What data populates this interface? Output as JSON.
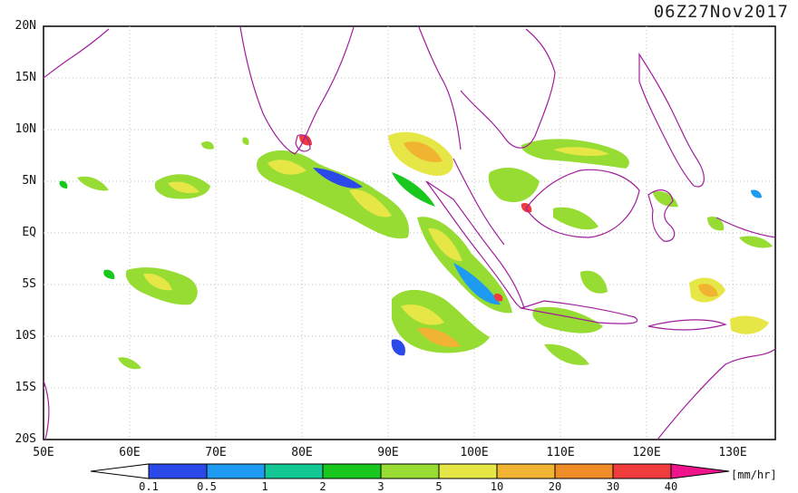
{
  "title": "06Z27Nov2017",
  "units": "[mm/hr]",
  "latitude_labels": [
    "20N",
    "15N",
    "10N",
    "5N",
    "EQ",
    "5S",
    "10S",
    "15S",
    "20S"
  ],
  "longitude_labels": [
    "50E",
    "60E",
    "70E",
    "80E",
    "90E",
    "100E",
    "110E",
    "120E",
    "130E"
  ],
  "colorbar": {
    "labels": [
      "0.1",
      "0.5",
      "1",
      "2",
      "3",
      "5",
      "10",
      "20",
      "30",
      "40"
    ],
    "colors": [
      "#ffffff",
      "#2b48e8",
      "#1e9bf0",
      "#14c896",
      "#19c81e",
      "#96dc32",
      "#e6e646",
      "#f0b432",
      "#f08c28",
      "#f03c3c",
      "#f0148c"
    ]
  },
  "map": {
    "lon_range": [
      50,
      135
    ],
    "lat_range": [
      -20,
      20
    ],
    "grid": true,
    "coastline_color": "#a01e9b"
  }
}
